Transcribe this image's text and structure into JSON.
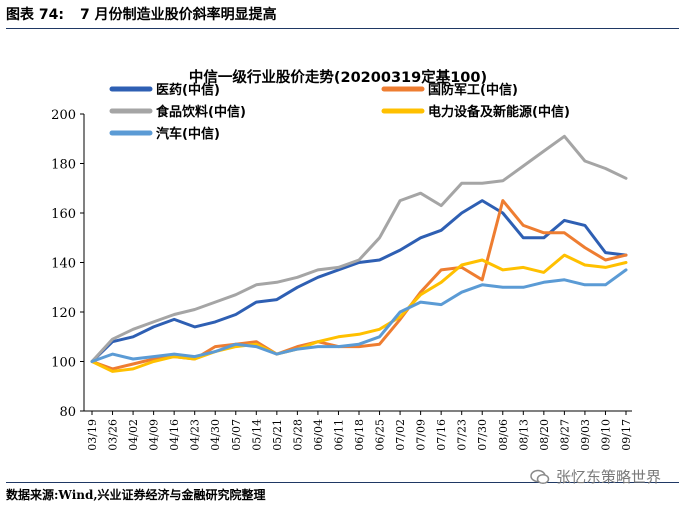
{
  "header": {
    "figure_label": "图表 74:",
    "figure_title": "7 月份制造业股价斜率明显提高"
  },
  "footer": {
    "source": "数据来源:Wind,兴业证券经济与金融研究院整理",
    "watermark": "张忆东策略世界"
  },
  "chart_data": {
    "type": "line",
    "title": "中信一级行业股价走势(20200319定基100)",
    "xlabel": "",
    "ylabel": "",
    "ylim": [
      80,
      200
    ],
    "yticks": [
      80,
      100,
      120,
      140,
      160,
      180,
      200
    ],
    "grid": false,
    "legend_position": "top",
    "categories": [
      "03/19",
      "03/26",
      "04/02",
      "04/09",
      "04/16",
      "04/23",
      "04/30",
      "05/07",
      "05/14",
      "05/21",
      "05/28",
      "06/04",
      "06/11",
      "06/18",
      "06/25",
      "07/02",
      "07/09",
      "07/16",
      "07/23",
      "07/30",
      "08/06",
      "08/13",
      "08/20",
      "08/27",
      "09/03",
      "09/10",
      "09/17"
    ],
    "series": [
      {
        "name": "医药(中信)",
        "color": "#2e5fb3",
        "values": [
          100,
          108,
          110,
          114,
          117,
          114,
          116,
          119,
          124,
          125,
          130,
          134,
          137,
          140,
          141,
          145,
          150,
          153,
          160,
          165,
          160,
          150,
          150,
          157,
          155,
          144,
          143
        ]
      },
      {
        "name": "国防军工(中信)",
        "color": "#ee7d31",
        "values": [
          100,
          97,
          99,
          101,
          102,
          101,
          106,
          107,
          108,
          103,
          106,
          108,
          106,
          106,
          107,
          117,
          128,
          137,
          138,
          133,
          165,
          155,
          152,
          152,
          146,
          141,
          143
        ]
      },
      {
        "name": "食品饮料(中信)",
        "color": "#a5a5a5",
        "values": [
          100,
          109,
          113,
          116,
          119,
          121,
          124,
          127,
          131,
          132,
          134,
          137,
          138,
          141,
          150,
          165,
          168,
          163,
          172,
          172,
          173,
          179,
          185,
          191,
          181,
          178,
          174
        ]
      },
      {
        "name": "电力设备及新能源(中信)",
        "color": "#ffc000",
        "values": [
          100,
          96,
          97,
          100,
          102,
          101,
          104,
          106,
          107,
          103,
          105,
          108,
          110,
          111,
          113,
          118,
          127,
          132,
          139,
          141,
          137,
          138,
          136,
          143,
          139,
          138,
          140
        ]
      },
      {
        "name": "汽车(中信)",
        "color": "#5b9bd5",
        "values": [
          100,
          103,
          101,
          102,
          103,
          102,
          104,
          107,
          106,
          103,
          105,
          106,
          106,
          107,
          110,
          120,
          124,
          123,
          128,
          131,
          130,
          130,
          132,
          133,
          131,
          131,
          137
        ]
      }
    ]
  }
}
